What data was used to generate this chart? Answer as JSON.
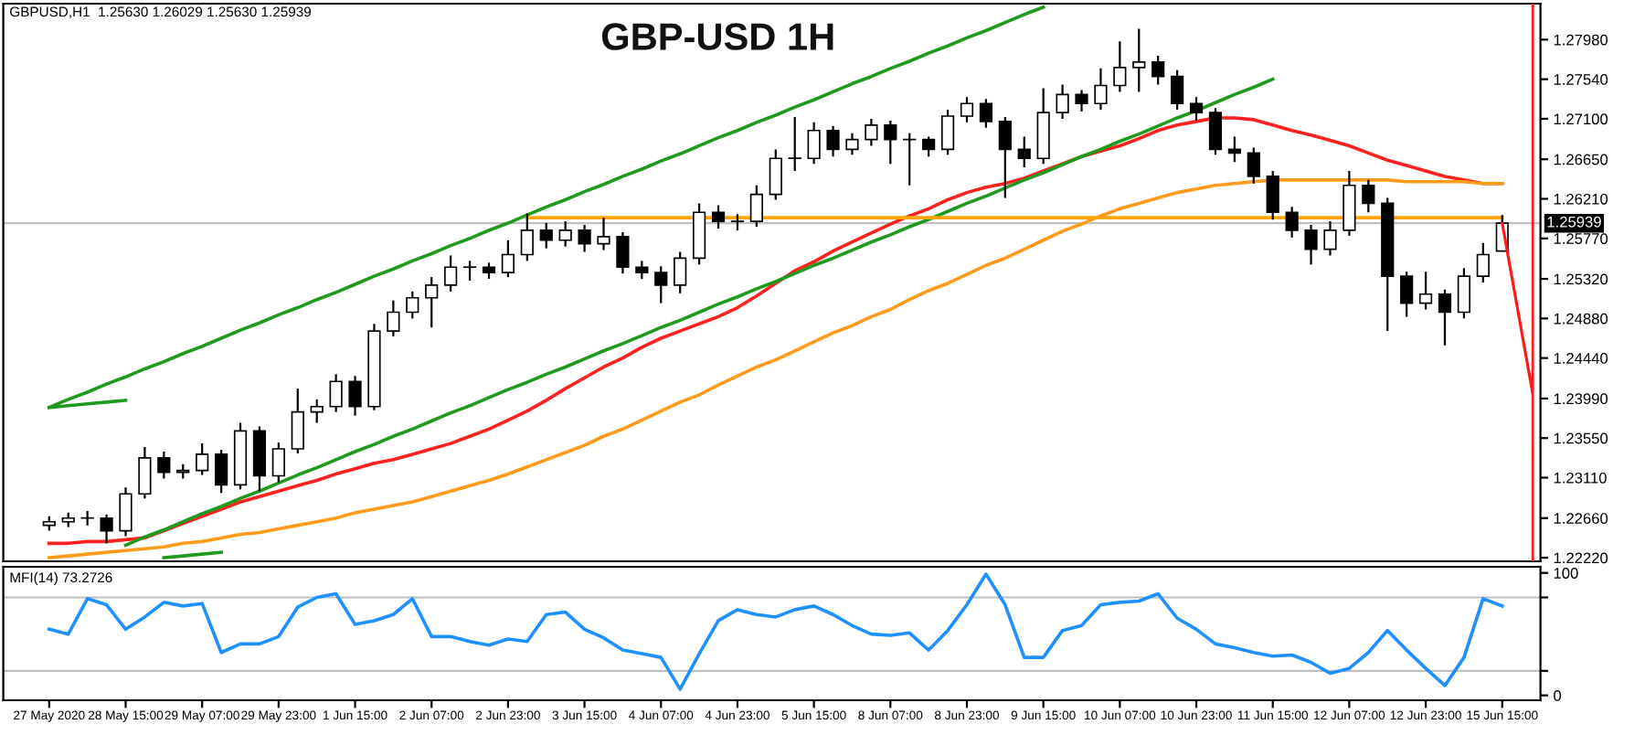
{
  "chart_data": [
    {
      "type": "candlestick",
      "title": "GBP-USD 1H",
      "annotations": [
        "GBPUSD,H1  1.25630 1.26029 1.25630 1.25939"
      ],
      "categories": [
        null,
        null,
        null,
        null,
        null,
        null,
        null,
        null,
        null,
        null,
        null,
        null,
        null,
        null,
        null,
        null,
        null,
        null,
        null,
        null,
        null,
        null,
        null,
        null,
        null,
        null,
        null,
        null,
        null,
        null,
        null,
        null,
        null,
        null,
        null,
        null,
        null,
        null,
        null,
        null,
        null,
        null,
        null,
        null,
        null,
        null,
        null,
        null,
        null,
        null,
        null,
        null,
        null,
        null,
        null,
        null,
        null,
        null,
        null,
        null,
        null,
        null,
        null,
        null,
        null,
        null,
        null,
        null,
        null,
        null,
        null,
        null,
        null,
        null,
        null,
        null,
        null
      ],
      "ohlc": [
        [
          1.2258,
          1.2268,
          1.2252,
          1.2262
        ],
        [
          1.2262,
          1.2272,
          1.2256,
          1.2266
        ],
        [
          1.2266,
          1.2274,
          1.2258,
          1.2266
        ],
        [
          1.2266,
          1.227,
          1.2238,
          1.2252
        ],
        [
          1.2252,
          1.23,
          1.2246,
          1.2293
        ],
        [
          1.2293,
          1.2345,
          1.2288,
          1.2333
        ],
        [
          1.2333,
          1.234,
          1.231,
          1.2317
        ],
        [
          1.2317,
          1.2326,
          1.231,
          1.2319
        ],
        [
          1.2319,
          1.2349,
          1.2314,
          1.2337
        ],
        [
          1.2337,
          1.2342,
          1.2294,
          1.2303
        ],
        [
          1.2303,
          1.2372,
          1.2298,
          1.2363
        ],
        [
          1.2363,
          1.2368,
          1.2296,
          1.2313
        ],
        [
          1.2313,
          1.235,
          1.2306,
          1.2343
        ],
        [
          1.2343,
          1.241,
          1.2338,
          1.2384
        ],
        [
          1.2384,
          1.2398,
          1.2372,
          1.239
        ],
        [
          1.239,
          1.2426,
          1.2384,
          1.2418
        ],
        [
          1.2418,
          1.2424,
          1.238,
          1.239
        ],
        [
          1.239,
          1.2482,
          1.2386,
          1.2474
        ],
        [
          1.2474,
          1.2508,
          1.2468,
          1.2495
        ],
        [
          1.2495,
          1.2518,
          1.2488,
          1.2511
        ],
        [
          1.2511,
          1.2534,
          1.2478,
          1.2525
        ],
        [
          1.2525,
          1.2558,
          1.2518,
          1.2545
        ],
        [
          1.2545,
          1.2552,
          1.253,
          1.2545
        ],
        [
          1.2545,
          1.255,
          1.2532,
          1.2539
        ],
        [
          1.2539,
          1.2575,
          1.2534,
          1.2559
        ],
        [
          1.2559,
          1.2605,
          1.2552,
          1.2586
        ],
        [
          1.2586,
          1.2594,
          1.2566,
          1.2575
        ],
        [
          1.2575,
          1.2596,
          1.2568,
          1.2586
        ],
        [
          1.2586,
          1.2592,
          1.2562,
          1.2571
        ],
        [
          1.2571,
          1.26,
          1.2564,
          1.2579
        ],
        [
          1.2579,
          1.2584,
          1.2538,
          1.2545
        ],
        [
          1.2545,
          1.2552,
          1.2532,
          1.2539
        ],
        [
          1.2539,
          1.2546,
          1.2505,
          1.2525
        ],
        [
          1.2525,
          1.2562,
          1.2516,
          1.2555
        ],
        [
          1.2555,
          1.2616,
          1.2548,
          1.2606
        ],
        [
          1.2606,
          1.2614,
          1.2588,
          1.2596
        ],
        [
          1.2596,
          1.2604,
          1.2586,
          1.2596
        ],
        [
          1.2596,
          1.2636,
          1.259,
          1.2626
        ],
        [
          1.2626,
          1.2676,
          1.262,
          1.2666
        ],
        [
          1.2666,
          1.2712,
          1.2652,
          1.2666
        ],
        [
          1.2666,
          1.2706,
          1.266,
          1.2697
        ],
        [
          1.2697,
          1.2702,
          1.2668,
          1.2676
        ],
        [
          1.2676,
          1.2694,
          1.267,
          1.2687
        ],
        [
          1.2687,
          1.271,
          1.268,
          1.2703
        ],
        [
          1.2703,
          1.2708,
          1.266,
          1.2687
        ],
        [
          1.2687,
          1.2694,
          1.2636,
          1.2687
        ],
        [
          1.2687,
          1.269,
          1.2668,
          1.2676
        ],
        [
          1.2676,
          1.272,
          1.267,
          1.2713
        ],
        [
          1.2713,
          1.2734,
          1.2706,
          1.2727
        ],
        [
          1.2727,
          1.2732,
          1.27,
          1.2707
        ],
        [
          1.2707,
          1.2712,
          1.2622,
          1.2676
        ],
        [
          1.2676,
          1.269,
          1.2656,
          1.2666
        ],
        [
          1.2666,
          1.2744,
          1.266,
          1.2717
        ],
        [
          1.2717,
          1.2748,
          1.271,
          1.2737
        ],
        [
          1.2737,
          1.2742,
          1.2718,
          1.2727
        ],
        [
          1.2727,
          1.2766,
          1.272,
          1.2747
        ],
        [
          1.2747,
          1.2796,
          1.274,
          1.2767
        ],
        [
          1.2767,
          1.281,
          1.274,
          1.2773
        ],
        [
          1.2773,
          1.278,
          1.2748,
          1.2757
        ],
        [
          1.2757,
          1.2764,
          1.272,
          1.2727
        ],
        [
          1.2727,
          1.2734,
          1.2708,
          1.2717
        ],
        [
          1.2717,
          1.2722,
          1.267,
          1.2676
        ],
        [
          1.2676,
          1.269,
          1.2662,
          1.2672
        ],
        [
          1.2672,
          1.2678,
          1.2638,
          1.2646
        ],
        [
          1.2646,
          1.2652,
          1.2598,
          1.2606
        ],
        [
          1.2606,
          1.2612,
          1.2578,
          1.2586
        ],
        [
          1.2586,
          1.2592,
          1.2548,
          1.2565
        ],
        [
          1.2565,
          1.2596,
          1.2558,
          1.2586
        ],
        [
          1.2586,
          1.2652,
          1.258,
          1.2636
        ],
        [
          1.2636,
          1.2642,
          1.2606,
          1.2616
        ],
        [
          1.2616,
          1.2622,
          1.2474,
          1.2535
        ],
        [
          1.2535,
          1.254,
          1.249,
          1.2505
        ],
        [
          1.2505,
          1.254,
          1.2498,
          1.2515
        ],
        [
          1.2515,
          1.252,
          1.2458,
          1.2495
        ],
        [
          1.2495,
          1.2544,
          1.2488,
          1.2535
        ],
        [
          1.2535,
          1.2572,
          1.2528,
          1.2559
        ],
        [
          1.2563,
          1.2603,
          1.2563,
          1.2594
        ]
      ],
      "series": [
        {
          "type": "line",
          "color": "#ff2020",
          "values": [
            1.2238,
            1.2238,
            1.224,
            1.224,
            1.2242,
            1.2244,
            1.2252,
            1.226,
            1.2268,
            1.2276,
            1.2284,
            1.229,
            1.2296,
            1.2302,
            1.2308,
            1.2315,
            1.2321,
            1.2327,
            1.2331,
            1.2337,
            1.2343,
            1.2349,
            1.2357,
            1.2365,
            1.2375,
            1.2385,
            1.2397,
            1.241,
            1.2422,
            1.2434,
            1.2444,
            1.2456,
            1.2466,
            1.2474,
            1.2482,
            1.249,
            1.25,
            1.2513,
            1.2527,
            1.2541,
            1.2551,
            1.2563,
            1.2573,
            1.2583,
            1.2593,
            1.2602,
            1.261,
            1.262,
            1.2628,
            1.2634,
            1.2638,
            1.2644,
            1.2652,
            1.266,
            1.2668,
            1.2674,
            1.268,
            1.2688,
            1.2697,
            1.2703,
            1.2707,
            1.2711,
            1.2711,
            1.2709,
            1.2703,
            1.2697,
            1.2692,
            1.2686,
            1.268,
            1.2672,
            1.2664,
            1.2658,
            1.2652,
            1.2646,
            1.2642,
            1.2638,
            1.2638
          ]
        },
        {
          "type": "line",
          "color": "#ff9a1a",
          "values": [
            1.2222,
            1.2224,
            1.2226,
            1.2228,
            1.223,
            1.2232,
            1.2234,
            1.2238,
            1.224,
            1.2244,
            1.2248,
            1.225,
            1.2254,
            1.2258,
            1.2262,
            1.2266,
            1.2272,
            1.2276,
            1.228,
            1.2284,
            1.229,
            1.2296,
            1.2302,
            1.2308,
            1.2315,
            1.2323,
            1.2331,
            1.2339,
            1.2347,
            1.2357,
            1.2365,
            1.2375,
            1.2385,
            1.2395,
            1.2403,
            1.2414,
            1.2424,
            1.2434,
            1.2442,
            1.2452,
            1.2462,
            1.2472,
            1.248,
            1.249,
            1.2498,
            1.2509,
            1.2519,
            1.2527,
            1.2537,
            1.2547,
            1.2555,
            1.2565,
            1.2575,
            1.2585,
            1.2593,
            1.2602,
            1.261,
            1.2616,
            1.2622,
            1.2628,
            1.2632,
            1.2636,
            1.2638,
            1.264,
            1.2642,
            1.2642,
            1.2642,
            1.2642,
            1.2642,
            1.2642,
            1.2642,
            1.264,
            1.264,
            1.264,
            1.264,
            1.2638,
            1.2638
          ]
        },
        {
          "type": "line",
          "color": "#1f9a1f",
          "values": [
            1.2389,
            1.2398,
            1.2406,
            1.2415,
            1.2423,
            1.2432,
            1.244,
            1.2449,
            1.2457,
            1.2466,
            1.2475,
            1.2483,
            1.2492,
            1.25,
            1.2509,
            1.2517,
            1.2526,
            1.2535,
            1.2543,
            1.2552,
            1.256,
            1.2569,
            1.2577,
            1.2586,
            1.2594,
            1.2603,
            1.2612,
            1.262,
            1.2629,
            1.2637,
            1.2646,
            1.2654,
            1.2663,
            1.2671,
            1.268,
            1.2689,
            1.2697,
            1.2706,
            1.2714,
            1.2723,
            1.2731,
            1.274,
            1.2749,
            1.2757,
            1.2766,
            1.2774,
            1.2783,
            1.2791,
            1.28,
            1.2808,
            1.2817,
            1.2826,
            1.2834,
            null,
            null,
            null,
            null,
            null,
            null,
            null,
            null,
            null,
            null,
            null,
            null,
            null,
            null,
            null,
            null,
            null,
            null,
            null,
            null,
            null,
            null,
            null,
            null
          ]
        },
        {
          "type": "line",
          "color": "#1f9a1f",
          "values": [
            null,
            null,
            null,
            null,
            1.2236,
            1.2245,
            1.2253,
            1.2262,
            1.2271,
            1.2279,
            1.2288,
            1.2296,
            1.2305,
            1.2314,
            1.2322,
            1.2331,
            1.234,
            1.2348,
            1.2357,
            1.2365,
            1.2374,
            1.2383,
            1.2391,
            1.24,
            1.2409,
            1.2417,
            1.2426,
            1.2434,
            1.2443,
            1.2452,
            1.246,
            1.2469,
            1.2478,
            1.2486,
            1.2495,
            1.2504,
            1.2512,
            1.2521,
            1.2529,
            1.2538,
            1.2547,
            1.2555,
            1.2564,
            1.2573,
            1.2581,
            1.259,
            1.2598,
            1.2607,
            1.2616,
            1.2624,
            1.2633,
            1.2642,
            1.265,
            1.2659,
            1.2668,
            1.2676,
            1.2685,
            1.2693,
            1.2702,
            1.2711,
            1.2719,
            1.2728,
            1.2737,
            1.2745,
            1.2754,
            null,
            null,
            null,
            null,
            null,
            null,
            null,
            null,
            null,
            null,
            null,
            null
          ]
        },
        {
          "type": "line",
          "color": "#1f9a1f",
          "values": [
            1.2389,
            1.2391,
            1.2393,
            1.2395,
            1.2397,
            null,
            null,
            null,
            null,
            null,
            null,
            null,
            null,
            null,
            null,
            null,
            null,
            null,
            null,
            null,
            null,
            null,
            null,
            null,
            null,
            null,
            null,
            null,
            null,
            null,
            null,
            null,
            null,
            null,
            null,
            null,
            null,
            null,
            null,
            null,
            null,
            null,
            null,
            null,
            null,
            null,
            null,
            null,
            null,
            null,
            null,
            null,
            null,
            null,
            null,
            null,
            null,
            null,
            null,
            null,
            null,
            null,
            null,
            null,
            null,
            null,
            null,
            null,
            null,
            null,
            null,
            null,
            null,
            null,
            null,
            null,
            null
          ]
        },
        {
          "type": "line",
          "color": "#1f9a1f",
          "values": [
            null,
            null,
            null,
            null,
            null,
            null,
            1.2222,
            1.2224,
            1.2226,
            1.2228,
            null,
            null,
            null,
            null,
            null,
            null,
            null,
            null,
            null,
            null,
            null,
            null,
            null,
            null,
            null,
            null,
            null,
            null,
            null,
            null,
            null,
            null,
            null,
            null,
            null,
            null,
            null,
            null,
            null,
            null,
            null,
            null,
            null,
            null,
            null,
            null,
            null,
            null,
            null,
            null,
            null,
            null,
            null,
            null,
            null,
            null,
            null,
            null,
            null,
            null,
            null,
            null,
            null,
            null,
            null,
            null,
            null,
            null,
            null,
            null,
            null,
            null,
            null,
            null,
            null,
            null,
            null
          ]
        },
        {
          "type": "line",
          "color": "#ffa500",
          "values": [
            null,
            null,
            null,
            null,
            null,
            null,
            null,
            null,
            null,
            null,
            null,
            null,
            null,
            null,
            null,
            null,
            null,
            null,
            null,
            null,
            null,
            null,
            null,
            null,
            null,
            1.26,
            1.26,
            1.26,
            1.26,
            1.26,
            1.26,
            1.26,
            1.26,
            1.26,
            1.26,
            1.26,
            1.26,
            1.26,
            1.26,
            1.26,
            1.26,
            1.26,
            1.26,
            1.26,
            1.26,
            1.26,
            1.26,
            1.26,
            1.26,
            1.26,
            1.26,
            1.26,
            1.26,
            1.26,
            1.26,
            1.26,
            1.26,
            1.26,
            1.26,
            1.26,
            1.26,
            1.26,
            1.26,
            1.26,
            1.26,
            1.26,
            1.26,
            1.26,
            1.26,
            1.26,
            1.26,
            1.26,
            1.26,
            1.26,
            1.26,
            1.26,
            1.26
          ]
        }
      ],
      "ref_lines": [
        {
          "axis": "y",
          "value": 1.25939,
          "label": "1.25939",
          "color": "#c0c0c0"
        }
      ],
      "ylim": [
        1.2218,
        1.2838
      ],
      "yticks": [
        {
          "value": 1.2222,
          "label": "1.22220"
        },
        {
          "value": 1.2266,
          "label": "1.22660"
        },
        {
          "value": 1.2311,
          "label": "1.23110"
        },
        {
          "value": 1.2355,
          "label": "1.23550"
        },
        {
          "value": 1.2399,
          "label": "1.23990"
        },
        {
          "value": 1.2444,
          "label": "1.24440"
        },
        {
          "value": 1.2488,
          "label": "1.24880"
        },
        {
          "value": 1.2532,
          "label": "1.25320"
        },
        {
          "value": 1.2577,
          "label": "1.25770"
        },
        {
          "value": 1.2621,
          "label": "1.26210"
        },
        {
          "value": 1.2665,
          "label": "1.26650"
        },
        {
          "value": 1.271,
          "label": "1.27100"
        },
        {
          "value": 1.2754,
          "label": "1.27540"
        },
        {
          "value": 1.2798,
          "label": "1.27980"
        }
      ],
      "tick_labels": "y"
    },
    {
      "type": "line",
      "title": "MFI(14) 73.2726",
      "categories": [
        "27 May 2020",
        null,
        null,
        null,
        "28 May 15:00",
        null,
        null,
        null,
        "29 May 07:00",
        null,
        null,
        null,
        "29 May 23:00",
        null,
        null,
        null,
        "1 Jun 15:00",
        null,
        null,
        null,
        "2 Jun 07:00",
        null,
        null,
        null,
        "2 Jun 23:00",
        null,
        null,
        null,
        "3 Jun 15:00",
        null,
        null,
        null,
        "4 Jun 07:00",
        null,
        null,
        null,
        "4 Jun 23:00",
        null,
        null,
        null,
        "5 Jun 15:00",
        null,
        null,
        null,
        "8 Jun 07:00",
        null,
        null,
        null,
        "8 Jun 23:00",
        null,
        null,
        null,
        "9 Jun 15:00",
        null,
        null,
        null,
        "10 Jun 07:00",
        null,
        null,
        null,
        "10 Jun 23:00",
        null,
        null,
        null,
        "11 Jun 15:00",
        null,
        null,
        null,
        "12 Jun 07:00",
        null,
        null,
        null,
        "12 Jun 23:00",
        null,
        null,
        null,
        "15 Jun 15:00"
      ],
      "series": [
        {
          "color": "#1e90ff",
          "values": [
            54,
            50,
            79,
            74,
            54,
            64,
            76,
            73,
            75,
            35,
            42,
            42,
            48,
            72,
            80,
            83,
            58,
            61,
            66,
            79,
            48,
            48,
            44,
            41,
            46,
            44,
            66,
            68,
            54,
            47,
            37,
            34,
            31,
            5,
            34,
            61,
            70,
            66,
            64,
            70,
            73,
            66,
            57,
            50,
            49,
            51,
            37,
            53,
            74,
            99,
            74,
            31,
            31,
            53,
            57,
            74,
            76,
            77,
            83,
            63,
            54,
            42,
            39,
            35,
            32,
            33,
            27,
            18,
            22,
            35,
            53,
            37,
            22,
            8,
            31,
            79,
            73
          ]
        }
      ],
      "ref_lines": [
        {
          "axis": "y",
          "value": 80,
          "color": "#c0c0c0"
        },
        {
          "axis": "y",
          "value": 20,
          "color": "#c0c0c0"
        }
      ],
      "ylim": [
        -4,
        105
      ],
      "yticks": [
        100,
        {
          "value": 80,
          "label": null
        },
        {
          "value": 20,
          "label": null
        },
        0
      ]
    }
  ]
}
